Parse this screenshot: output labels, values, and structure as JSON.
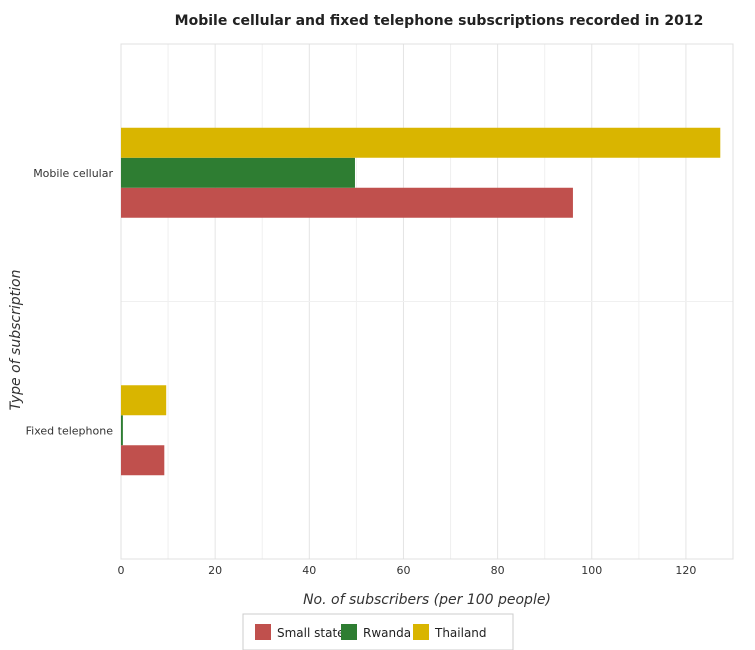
{
  "chart_data": {
    "type": "bar",
    "orientation": "horizontal",
    "title": "Mobile cellular and fixed telephone subscriptions recorded in 2012",
    "xlabel": "No. of subscribers (per 100 people)",
    "ylabel": "Type of subscription",
    "categories": [
      "Mobile cellular",
      "Fixed telephone"
    ],
    "series": [
      {
        "name": "Small states",
        "color": "#c0504d",
        "values": [
          96.0,
          9.2
        ]
      },
      {
        "name": "Rwanda",
        "color": "#2e7d32",
        "values": [
          49.7,
          0.4
        ]
      },
      {
        "name": "Thailand",
        "color": "#d9b500",
        "values": [
          127.3,
          9.6
        ]
      }
    ],
    "xlim": [
      0,
      130
    ],
    "xticks": [
      "0",
      "20",
      "40",
      "60",
      "80",
      "100",
      "120"
    ],
    "grid": true,
    "legend_position": "bottom-center"
  }
}
